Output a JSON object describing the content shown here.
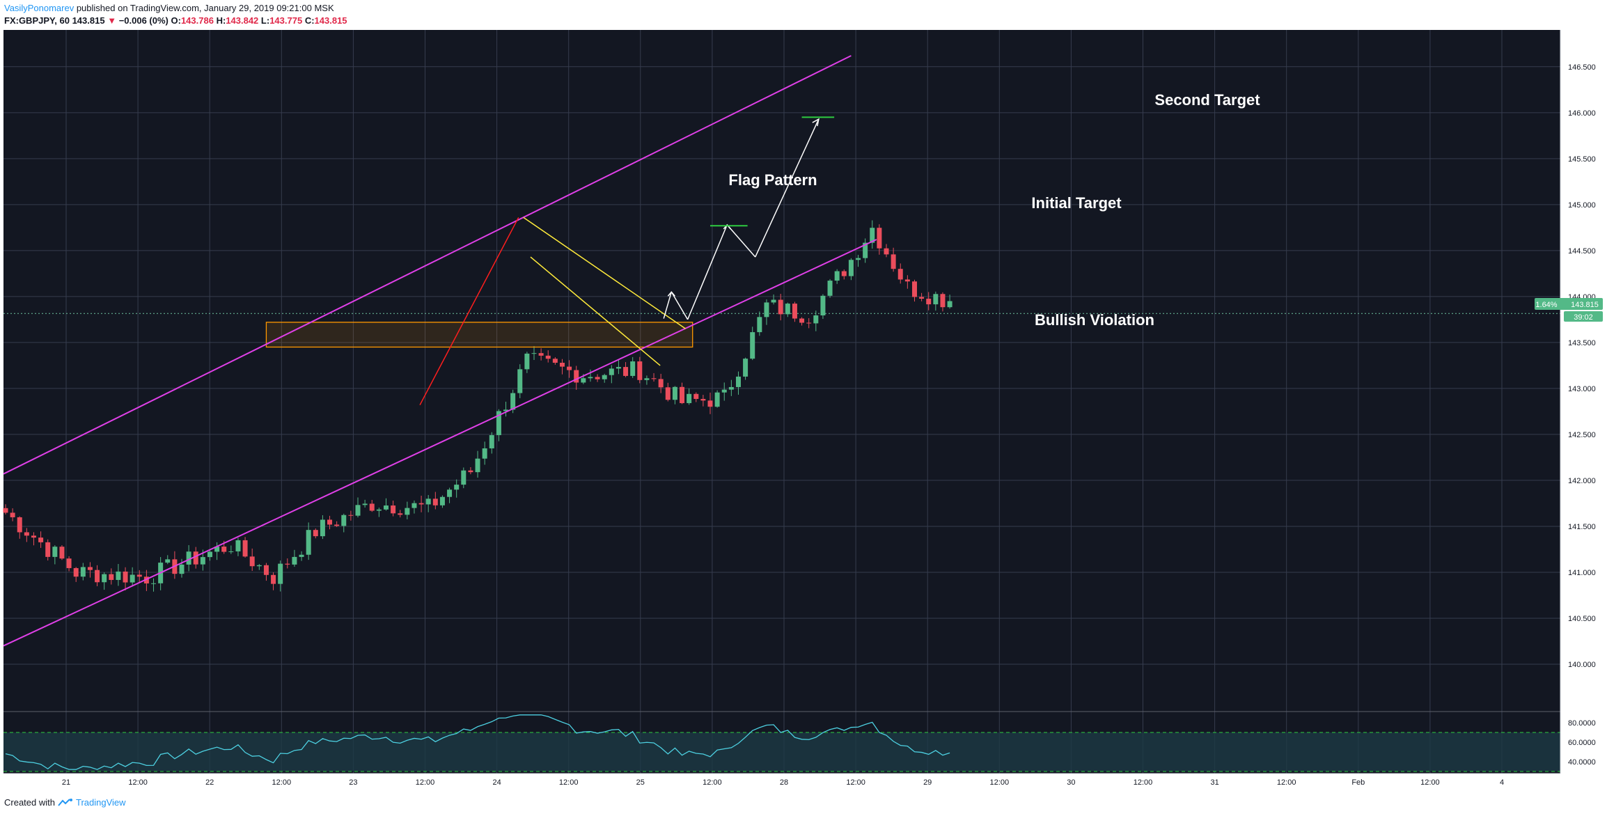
{
  "header": {
    "author": "VasilyPonomarev",
    "published_text": "published on TradingView.com, January 29, 2019 09:21:00 MSK",
    "symbol": "FX:GBPJPY, 60",
    "last": "143.815",
    "change_arrow": "▼",
    "change": "−0.006 (0%)",
    "o_label": "O:",
    "o_value": "143.786",
    "h_label": "H:",
    "h_value": "143.842",
    "l_label": "L:",
    "l_value": "143.775",
    "c_label": "C:",
    "c_value": "143.815"
  },
  "footer": {
    "created_with": "Created with",
    "brand": "TradingView"
  },
  "chart_data": {
    "type": "candlestick",
    "title": "",
    "ylim": [
      139.5,
      146.9
    ],
    "y_ticks": [
      140.0,
      140.5,
      141.0,
      141.5,
      142.0,
      142.5,
      143.0,
      143.5,
      144.0,
      144.5,
      145.0,
      145.5,
      146.0,
      146.5
    ],
    "y_tick_labels": [
      "140.000",
      "140.500",
      "141.000",
      "141.500",
      "142.000",
      "142.500",
      "143.000",
      "143.500",
      "144.000",
      "144.500",
      "145.000",
      "145.500",
      "146.000",
      "146.500"
    ],
    "x_tick_labels": [
      "21",
      "12:00",
      "22",
      "12:00",
      "23",
      "12:00",
      "24",
      "12:00",
      "25",
      "12:00",
      "28",
      "12:00",
      "29",
      "12:00",
      "30",
      "12:00",
      "31",
      "12:00",
      "Feb",
      "12:00",
      "4"
    ],
    "price_badge": {
      "change": "1.64%",
      "price": "143.815",
      "countdown": "39:02"
    },
    "candle_count": 134,
    "ohlc_anchors": [
      {
        "i": 0,
        "c": 141.65
      },
      {
        "i": 10,
        "c": 141.0
      },
      {
        "i": 20,
        "c": 140.95
      },
      {
        "i": 32,
        "c": 141.3
      },
      {
        "i": 38,
        "c": 140.95
      },
      {
        "i": 44,
        "c": 141.45
      },
      {
        "i": 52,
        "c": 141.75
      },
      {
        "i": 60,
        "c": 141.7
      },
      {
        "i": 66,
        "c": 142.1
      },
      {
        "i": 74,
        "c": 143.3
      },
      {
        "i": 82,
        "c": 143.15
      },
      {
        "i": 90,
        "c": 143.2
      },
      {
        "i": 96,
        "c": 142.85
      },
      {
        "i": 102,
        "c": 142.9
      },
      {
        "i": 108,
        "c": 143.9
      },
      {
        "i": 114,
        "c": 143.8
      },
      {
        "i": 120,
        "c": 144.4
      },
      {
        "i": 123,
        "c": 144.75
      },
      {
        "i": 128,
        "c": 144.1
      },
      {
        "i": 134,
        "c": 143.95
      }
    ],
    "rsi": {
      "upper": 70,
      "lower": 30,
      "levels": [
        "80.0000",
        "60.0000",
        "40.0000"
      ]
    },
    "annotations": {
      "flag_pattern": "Flag Pattern",
      "initial_target": "Initial Target",
      "second_target": "Second Target",
      "bullish_violation": "Bullish Violation"
    },
    "colors": {
      "background": "#131722",
      "grid": "#363c4e",
      "up": "#53b987",
      "down": "#eb4d5c",
      "channel": "#e040e8",
      "flag": "#ffeb3b",
      "zone": "#ff9800",
      "pole": "#ff1e1e",
      "target": "#2ecc40",
      "rsi_line": "#4dd0e1",
      "rsi_band": "#1d3a45"
    }
  }
}
